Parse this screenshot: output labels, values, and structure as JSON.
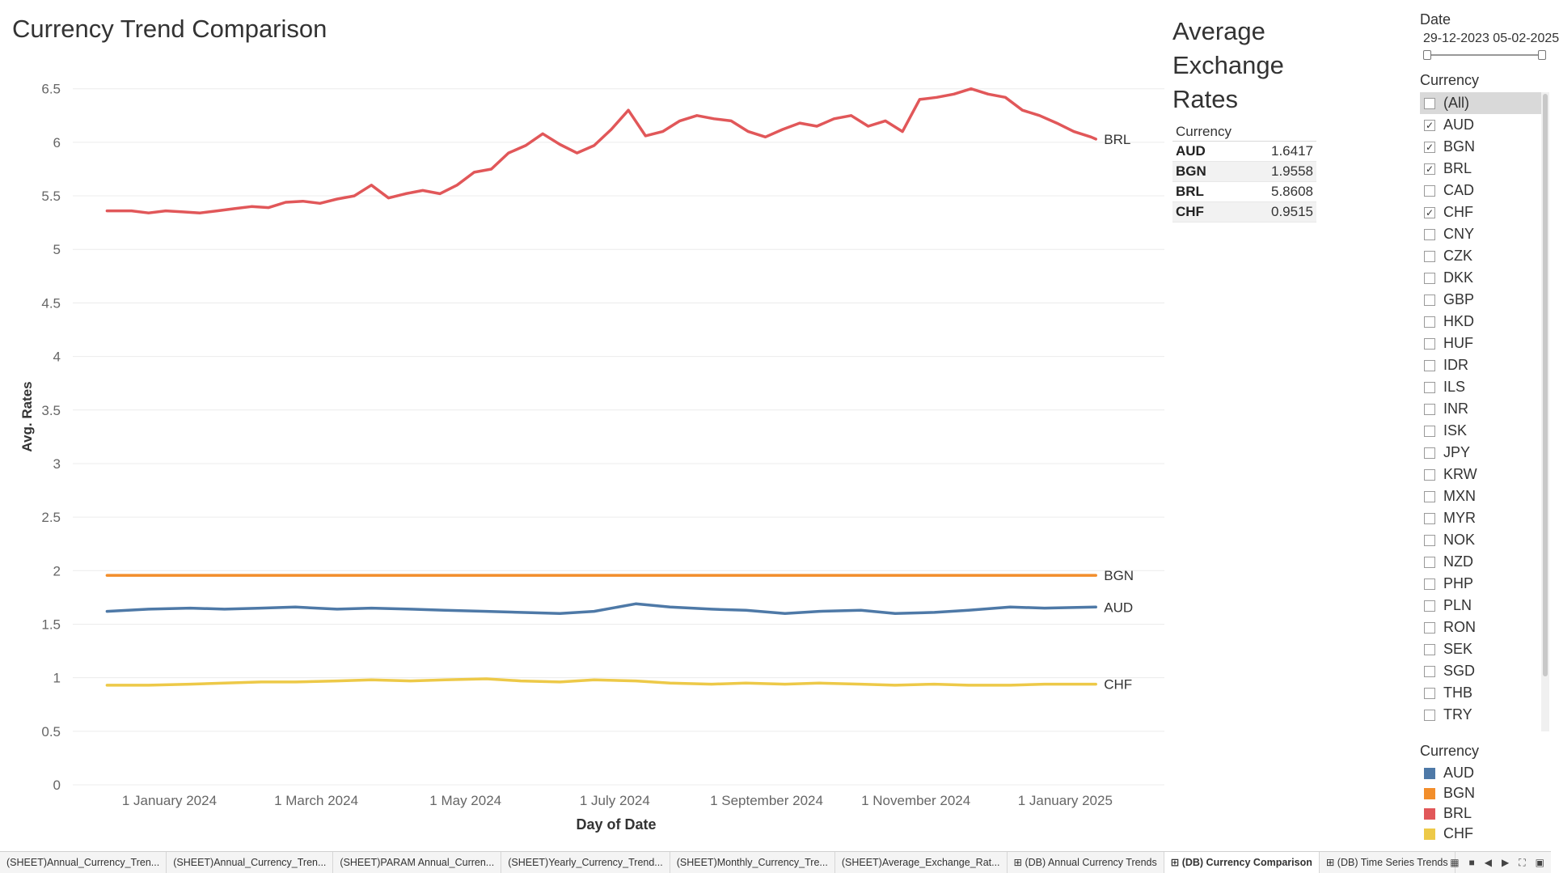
{
  "title": "Currency Trend Comparison",
  "avg_panel": {
    "title_lines": [
      "Average",
      "Exchange",
      "Rates"
    ],
    "column_header": "Currency",
    "rows": [
      {
        "currency": "AUD",
        "value": "1.6417"
      },
      {
        "currency": "BGN",
        "value": "1.9558"
      },
      {
        "currency": "BRL",
        "value": "5.8608"
      },
      {
        "currency": "CHF",
        "value": "0.9515"
      }
    ]
  },
  "date_filter": {
    "label": "Date",
    "range_text": "29-12-2023 05-02-2025"
  },
  "currency_filter": {
    "label": "Currency",
    "items": [
      {
        "label": "(All)",
        "checked": false
      },
      {
        "label": "AUD",
        "checked": true
      },
      {
        "label": "BGN",
        "checked": true
      },
      {
        "label": "BRL",
        "checked": true
      },
      {
        "label": "CAD",
        "checked": false
      },
      {
        "label": "CHF",
        "checked": true
      },
      {
        "label": "CNY",
        "checked": false
      },
      {
        "label": "CZK",
        "checked": false
      },
      {
        "label": "DKK",
        "checked": false
      },
      {
        "label": "GBP",
        "checked": false
      },
      {
        "label": "HKD",
        "checked": false
      },
      {
        "label": "HUF",
        "checked": false
      },
      {
        "label": "IDR",
        "checked": false
      },
      {
        "label": "ILS",
        "checked": false
      },
      {
        "label": "INR",
        "checked": false
      },
      {
        "label": "ISK",
        "checked": false
      },
      {
        "label": "JPY",
        "checked": false
      },
      {
        "label": "KRW",
        "checked": false
      },
      {
        "label": "MXN",
        "checked": false
      },
      {
        "label": "MYR",
        "checked": false
      },
      {
        "label": "NOK",
        "checked": false
      },
      {
        "label": "NZD",
        "checked": false
      },
      {
        "label": "PHP",
        "checked": false
      },
      {
        "label": "PLN",
        "checked": false
      },
      {
        "label": "RON",
        "checked": false
      },
      {
        "label": "SEK",
        "checked": false
      },
      {
        "label": "SGD",
        "checked": false
      },
      {
        "label": "THB",
        "checked": false
      },
      {
        "label": "TRY",
        "checked": false
      }
    ]
  },
  "legend": {
    "label": "Currency",
    "items": [
      {
        "label": "AUD",
        "color": "#4e79a7"
      },
      {
        "label": "BGN",
        "color": "#f28e2b"
      },
      {
        "label": "BRL",
        "color": "#e15759"
      },
      {
        "label": "CHF",
        "color": "#edc948"
      }
    ]
  },
  "tabs": [
    {
      "label": "(SHEET)Annual_Currency_Tren...",
      "active": false,
      "icon": ""
    },
    {
      "label": "(SHEET)Annual_Currency_Tren...",
      "active": false,
      "icon": ""
    },
    {
      "label": "(SHEET)PARAM Annual_Curren...",
      "active": false,
      "icon": ""
    },
    {
      "label": "(SHEET)Yearly_Currency_Trend...",
      "active": false,
      "icon": ""
    },
    {
      "label": "(SHEET)Monthly_Currency_Tre...",
      "active": false,
      "icon": ""
    },
    {
      "label": "(SHEET)Average_Exchange_Rat...",
      "active": false,
      "icon": ""
    },
    {
      "label": "(DB) Annual Currency Trends",
      "active": false,
      "icon": "dashboard-icon"
    },
    {
      "label": "(DB) Currency Comparison",
      "active": true,
      "icon": "dashboard-icon"
    },
    {
      "label": "(DB) Time Series Trends",
      "active": false,
      "icon": "dashboard-icon"
    }
  ],
  "chart_data": {
    "type": "line",
    "title": "Currency Trend Comparison",
    "xlabel": "Day of Date",
    "ylabel": "Avg. Rates",
    "x_axis_type": "date",
    "xlim": [
      "2023-12-15",
      "2025-03-05"
    ],
    "ylim": [
      0,
      6.8
    ],
    "yticks": [
      0,
      0.5,
      1,
      1.5,
      2,
      2.5,
      3,
      3.5,
      4,
      4.5,
      5,
      5.5,
      6,
      6.5
    ],
    "ytick_labels": [
      "0",
      "0.5",
      "1",
      "1.5",
      "2",
      "2.5",
      "3",
      "3.5",
      "4",
      "4.5",
      "5",
      "5.5",
      "6",
      "6.5"
    ],
    "xticks": [
      "2024-01-01",
      "2024-03-01",
      "2024-05-01",
      "2024-07-01",
      "2024-09-01",
      "2024-11-01",
      "2025-01-01"
    ],
    "xtick_labels": [
      "1 January 2024",
      "1 March 2024",
      "1 May 2024",
      "1 July 2024",
      "1 September 2024",
      "1 November 2024",
      "1 January 2025"
    ],
    "grid": true,
    "legend": "right",
    "series": [
      {
        "name": "BRL",
        "color": "#e15759",
        "x": [
          "2023-12-29",
          "2024-01-08",
          "2024-01-15",
          "2024-01-22",
          "2024-01-29",
          "2024-02-05",
          "2024-02-12",
          "2024-02-19",
          "2024-02-26",
          "2024-03-04",
          "2024-03-11",
          "2024-03-18",
          "2024-03-25",
          "2024-04-01",
          "2024-04-08",
          "2024-04-15",
          "2024-04-22",
          "2024-04-29",
          "2024-05-06",
          "2024-05-13",
          "2024-05-20",
          "2024-05-27",
          "2024-06-03",
          "2024-06-10",
          "2024-06-17",
          "2024-06-24",
          "2024-07-01",
          "2024-07-08",
          "2024-07-15",
          "2024-07-22",
          "2024-07-29",
          "2024-08-05",
          "2024-08-12",
          "2024-08-19",
          "2024-08-26",
          "2024-09-02",
          "2024-09-09",
          "2024-09-16",
          "2024-09-23",
          "2024-09-30",
          "2024-10-07",
          "2024-10-14",
          "2024-10-21",
          "2024-10-28",
          "2024-11-04",
          "2024-11-11",
          "2024-11-18",
          "2024-11-25",
          "2024-12-02",
          "2024-12-09",
          "2024-12-16",
          "2024-12-23",
          "2024-12-30",
          "2025-01-06",
          "2025-01-13",
          "2025-01-20",
          "2025-01-27",
          "2025-02-03",
          "2025-02-05"
        ],
        "y": [
          5.36,
          5.36,
          5.34,
          5.36,
          5.35,
          5.34,
          5.36,
          5.38,
          5.4,
          5.39,
          5.44,
          5.45,
          5.43,
          5.47,
          5.5,
          5.6,
          5.48,
          5.52,
          5.55,
          5.52,
          5.6,
          5.72,
          5.75,
          5.9,
          5.97,
          6.08,
          5.98,
          5.9,
          5.97,
          6.12,
          6.3,
          6.06,
          6.1,
          6.2,
          6.25,
          6.22,
          6.2,
          6.1,
          6.05,
          6.12,
          6.18,
          6.15,
          6.22,
          6.25,
          6.15,
          6.2,
          6.1,
          6.4,
          6.42,
          6.45,
          6.5,
          6.45,
          6.42,
          6.3,
          6.25,
          6.18,
          6.1,
          6.05,
          6.03
        ]
      },
      {
        "name": "BGN",
        "color": "#f28e2b",
        "x": [
          "2023-12-29",
          "2024-06-01",
          "2025-02-05"
        ],
        "y": [
          1.9558,
          1.9558,
          1.9558
        ]
      },
      {
        "name": "AUD",
        "color": "#4e79a7",
        "x": [
          "2023-12-29",
          "2024-01-15",
          "2024-02-01",
          "2024-02-15",
          "2024-03-01",
          "2024-03-15",
          "2024-04-01",
          "2024-04-15",
          "2024-05-01",
          "2024-05-15",
          "2024-06-01",
          "2024-06-15",
          "2024-07-01",
          "2024-07-15",
          "2024-08-01",
          "2024-08-15",
          "2024-09-01",
          "2024-09-15",
          "2024-10-01",
          "2024-10-15",
          "2024-11-01",
          "2024-11-15",
          "2024-12-01",
          "2024-12-15",
          "2025-01-01",
          "2025-01-15",
          "2025-02-05"
        ],
        "y": [
          1.62,
          1.64,
          1.65,
          1.64,
          1.65,
          1.66,
          1.64,
          1.65,
          1.64,
          1.63,
          1.62,
          1.61,
          1.6,
          1.62,
          1.69,
          1.66,
          1.64,
          1.63,
          1.6,
          1.62,
          1.63,
          1.6,
          1.61,
          1.63,
          1.66,
          1.65,
          1.66
        ]
      },
      {
        "name": "CHF",
        "color": "#edc948",
        "x": [
          "2023-12-29",
          "2024-01-15",
          "2024-02-01",
          "2024-02-15",
          "2024-03-01",
          "2024-03-15",
          "2024-04-01",
          "2024-04-15",
          "2024-05-01",
          "2024-05-15",
          "2024-06-01",
          "2024-06-15",
          "2024-07-01",
          "2024-07-15",
          "2024-08-01",
          "2024-08-15",
          "2024-09-01",
          "2024-09-15",
          "2024-10-01",
          "2024-10-15",
          "2024-11-01",
          "2024-11-15",
          "2024-12-01",
          "2024-12-15",
          "2025-01-01",
          "2025-01-15",
          "2025-02-05"
        ],
        "y": [
          0.93,
          0.93,
          0.94,
          0.95,
          0.96,
          0.96,
          0.97,
          0.98,
          0.97,
          0.98,
          0.99,
          0.97,
          0.96,
          0.98,
          0.97,
          0.95,
          0.94,
          0.95,
          0.94,
          0.95,
          0.94,
          0.93,
          0.94,
          0.93,
          0.93,
          0.94,
          0.94
        ]
      }
    ]
  }
}
